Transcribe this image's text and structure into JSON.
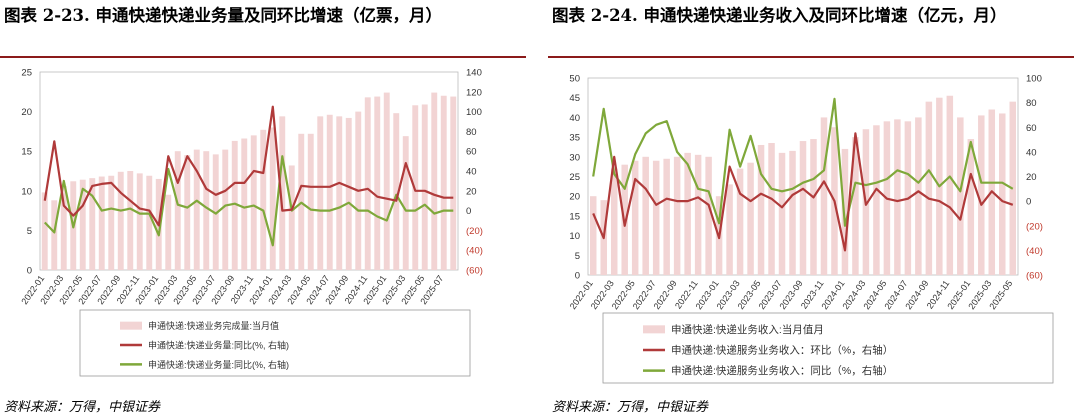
{
  "charts": [
    {
      "title": "图表 2-23. 申通快递快递业务量及同环比增速（亿票，月）",
      "source": "资料来源：万得，中银证券",
      "legend": [
        "申通快递:快递业务完成量:当月值",
        "申通快递:快递业务量:同比(%, 右轴)",
        "申通快递:快递业务量:同比(%, 右轴)"
      ],
      "x_tick_labels": [
        "2022-01",
        "2022-03",
        "2022-05",
        "2022-07",
        "2022-09",
        "2022-11",
        "2023-01",
        "2023-03",
        "2023-05",
        "2023-07",
        "2023-09",
        "2023-11",
        "2024-01",
        "2024-03",
        "2024-05",
        "2024-07",
        "2024-09",
        "2024-11",
        "2025-01",
        "2025-03",
        "2025-05",
        "2025-07"
      ],
      "left_ticks": [
        "0",
        "5",
        "10",
        "15",
        "20",
        "25"
      ],
      "right_ticks": [
        "(60)",
        "(40)",
        "(20)",
        "0",
        "20",
        "40",
        "60",
        "80",
        "100",
        "120",
        "140"
      ]
    },
    {
      "title": "图表 2-24. 申通快递快递业务收入及同环比增速（亿元，月）",
      "source": "资料来源：万得，中银证券",
      "legend": [
        "申通快递:快递业务收入:当月值月",
        "申通快递:快递服务业务收入：环比（%，右轴）",
        "申通快递:快递服务业务收入：同比（%，右轴）"
      ],
      "x_tick_labels": [
        "2022-01",
        "2022-03",
        "2022-05",
        "2022-07",
        "2022-09",
        "2022-11",
        "2023-01",
        "2023-03",
        "2023-05",
        "2023-07",
        "2023-09",
        "2023-11",
        "2024-01",
        "2024-03",
        "2024-05",
        "2024-07",
        "2024-09",
        "2024-11",
        "2025-01",
        "2025-03",
        "2025-05"
      ],
      "left_ticks": [
        "0",
        "5",
        "10",
        "15",
        "20",
        "25",
        "30",
        "35",
        "40",
        "45",
        "50"
      ],
      "right_ticks": [
        "(60)",
        "(40)",
        "(20)",
        "0",
        "20",
        "40",
        "60",
        "80",
        "100"
      ]
    }
  ],
  "chart_data": [
    {
      "type": "bar+line",
      "title": "申通快递快递业务量及同环比增速（亿票，月）",
      "x_start": "2022-01",
      "ylim_left": [
        0,
        25
      ],
      "ylim_right": [
        -60,
        140
      ],
      "bar_color": "#f2d4d4",
      "series_colors": [
        "#f2d4d4",
        "#b03a3a",
        "#7fa83a"
      ],
      "series": [
        {
          "name": "申通快递:快递业务完成量:当月值",
          "axis": "left",
          "values": [
            9.8,
            8.8,
            10.6,
            11.2,
            11.4,
            11.6,
            11.8,
            11.9,
            12.4,
            12.5,
            12.2,
            11.9,
            11.5,
            9.5,
            15.0,
            14.5,
            15.2,
            15.0,
            14.6,
            15.2,
            16.3,
            16.6,
            17.0,
            17.7,
            18.0,
            19.4,
            13.2,
            17.2,
            17.2,
            19.4,
            19.6,
            19.4,
            19.2,
            20.0,
            21.8,
            21.9,
            22.4,
            19.8,
            16.9,
            20.8,
            20.9,
            22.4,
            22.0,
            21.9
          ]
        },
        {
          "name": "申通快递:快递业务量:同比(%, 右轴)",
          "axis": "right",
          "values": [
            10,
            70,
            5,
            -5,
            5,
            25,
            27,
            28,
            18,
            10,
            2,
            0,
            -15,
            55,
            28,
            55,
            40,
            22,
            16,
            20,
            28,
            28,
            40,
            38,
            105,
            0,
            1,
            25,
            24,
            24,
            24,
            28,
            24,
            20,
            22,
            14,
            12,
            10,
            48,
            20,
            20,
            16,
            13,
            13
          ]
        },
        {
          "name": "申通快递:快递业务量:同比(%, 右轴)",
          "axis": "right",
          "values": [
            -12,
            -22,
            30,
            -17,
            22,
            15,
            0,
            2,
            0,
            2,
            -3,
            -3,
            -25,
            42,
            6,
            3,
            10,
            3,
            -3,
            5,
            7,
            3,
            5,
            0,
            -35,
            55,
            0,
            8,
            1,
            0,
            0,
            3,
            8,
            0,
            0,
            -6,
            -10,
            16,
            0,
            0,
            6,
            -3,
            0,
            0
          ]
        }
      ]
    },
    {
      "type": "bar+line",
      "title": "申通快递快递业务收入及同环比增速（亿元，月）",
      "x_start": "2022-01",
      "ylim_left": [
        0,
        50
      ],
      "ylim_right": [
        -60,
        100
      ],
      "bar_color": "#f2d4d4",
      "series_colors": [
        "#f2d4d4",
        "#b03a3a",
        "#7fa83a"
      ],
      "series": [
        {
          "name": "申通快递:快递业务收入:当月值月",
          "axis": "left",
          "values": [
            20.0,
            19.0,
            27.0,
            28.0,
            29.0,
            30.0,
            29.0,
            29.5,
            30.0,
            31.0,
            30.5,
            30.0,
            20.0,
            23.0,
            27.0,
            28.5,
            33.0,
            33.5,
            31.0,
            31.5,
            34.0,
            34.5,
            40.0,
            37.5,
            32.0,
            35.0,
            37.0,
            38.0,
            39.0,
            39.5,
            39.0,
            40.0,
            44.0,
            45.0,
            45.5,
            40.0,
            34.5,
            40.5,
            42.0,
            41.0,
            44.0
          ]
        },
        {
          "name": "申通快递:快递服务业务收入：环比（%，右轴）",
          "axis": "right",
          "values": [
            -10,
            -30,
            36,
            -20,
            18,
            10,
            -3,
            2,
            0,
            0,
            3,
            -3,
            -30,
            28,
            6,
            0,
            6,
            2,
            -5,
            5,
            10,
            3,
            16,
            0,
            -40,
            55,
            -3,
            10,
            2,
            0,
            2,
            8,
            2,
            0,
            -5,
            -15,
            22,
            -3,
            8,
            0,
            -3
          ]
        },
        {
          "name": "申通快递:快递服务业务收入：同比（%，右轴）",
          "axis": "right",
          "values": [
            20,
            75,
            22,
            10,
            38,
            55,
            62,
            65,
            40,
            30,
            10,
            8,
            -18,
            58,
            28,
            53,
            22,
            10,
            8,
            10,
            15,
            18,
            25,
            83,
            -20,
            15,
            13,
            15,
            18,
            25,
            22,
            15,
            25,
            12,
            20,
            8,
            48,
            15,
            15,
            15,
            10
          ]
        }
      ]
    }
  ]
}
